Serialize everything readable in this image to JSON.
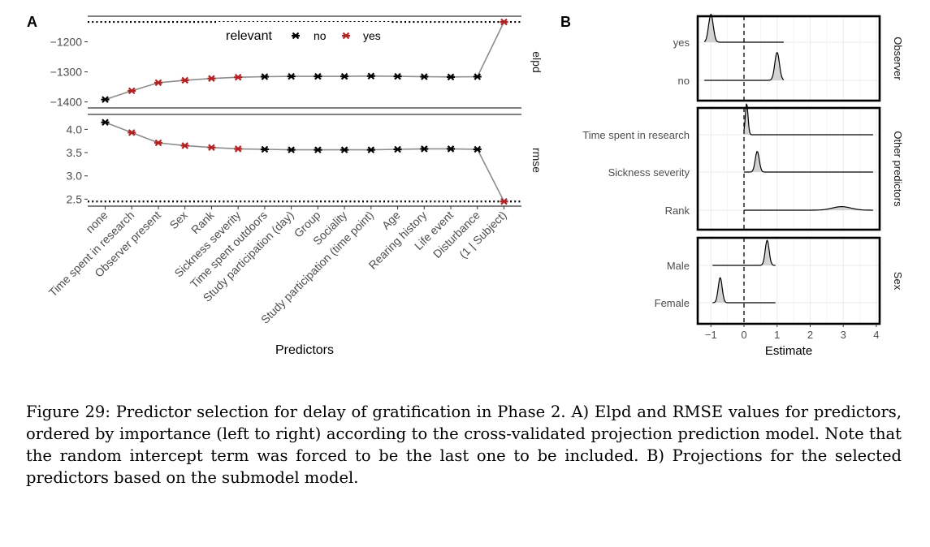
{
  "panels": {
    "a_label": "A",
    "b_label": "B"
  },
  "caption": "Figure 29: Predictor selection for delay of gratification in Phase 2. A) Elpd and RMSE values for predictors, ordered by importance (left to right) according to the cross-validated projection prediction model. Note that the random intercept term was forced to be the last one to be included. B) Projections for the selected predictors based on the submodel model.",
  "colors": {
    "relevant_no": "#000000",
    "relevant_yes": "#b22222",
    "line": "#8c8c8c",
    "panel_border": "#000000"
  },
  "chart_data": [
    {
      "type": "line",
      "panel": "A",
      "xlabel": "Predictors",
      "legend": {
        "title": "relevant",
        "entries": [
          "no",
          "yes"
        ],
        "placement": "top-inside"
      },
      "categories": [
        "none",
        "Time spent in research",
        "Observer present",
        "Sex",
        "Rank",
        "Sickness severity",
        "Time spent outdoors",
        "Study participation (day)",
        "Group",
        "Sociality",
        "Study participation (time point)",
        "Age",
        "Rearing history",
        "Life event",
        "Disturbance",
        "(1 | Subject)"
      ],
      "relevant": [
        "no",
        "yes",
        "yes",
        "yes",
        "yes",
        "yes",
        "no",
        "no",
        "no",
        "no",
        "no",
        "no",
        "no",
        "no",
        "no",
        "yes"
      ],
      "facets": [
        {
          "strip": "elpd",
          "values": [
            -1392,
            -1363,
            -1336,
            -1328,
            -1322,
            -1318,
            -1316,
            -1315,
            -1315,
            -1315,
            -1314,
            -1315,
            -1316,
            -1317,
            -1316,
            -1134
          ],
          "reference": -1134,
          "ylim": [
            -1420,
            -1115
          ],
          "yticks": [
            -1400,
            -1300,
            -1200
          ],
          "ytick_labels": [
            "−1400",
            "−1300",
            "−1200"
          ]
        },
        {
          "strip": "rmse",
          "values": [
            4.15,
            3.93,
            3.71,
            3.65,
            3.61,
            3.58,
            3.57,
            3.56,
            3.56,
            3.56,
            3.56,
            3.57,
            3.58,
            3.58,
            3.57,
            2.45
          ],
          "reference": 2.45,
          "ylim": [
            2.35,
            4.32
          ],
          "yticks": [
            2.5,
            3.0,
            3.5,
            4.0
          ],
          "ytick_labels": [
            "2.5",
            "3.0",
            "3.5",
            "4.0"
          ]
        }
      ]
    },
    {
      "type": "area",
      "panel": "B",
      "xlabel": "Estimate",
      "xlim": [
        -1.4,
        4.1
      ],
      "xticks": [
        -1,
        0,
        1,
        2,
        3,
        4
      ],
      "xtick_labels": [
        "−1",
        "0",
        "1",
        "2",
        "3",
        "4"
      ],
      "reference_x": 0,
      "facets": [
        {
          "strip": "Observer",
          "rows": [
            {
              "label": "yes",
              "peak": -1.0,
              "sd": 0.07,
              "lo": -1.2,
              "hi": 1.2,
              "height": 0.78
            },
            {
              "label": "no",
              "peak": 1.0,
              "sd": 0.07,
              "lo": -1.2,
              "hi": 1.2,
              "height": 0.78
            }
          ]
        },
        {
          "strip": "Other predictors",
          "rows": [
            {
              "label": "Time spent in research",
              "peak": 0.08,
              "sd": 0.04,
              "lo": 0.0,
              "hi": 3.9,
              "height": 0.88
            },
            {
              "label": "Sickness severity",
              "peak": 0.4,
              "sd": 0.06,
              "lo": 0.0,
              "hi": 3.9,
              "height": 0.58
            },
            {
              "label": "Rank",
              "peak": 2.95,
              "sd": 0.28,
              "lo": 0.0,
              "hi": 3.9,
              "height": 0.1
            }
          ]
        },
        {
          "strip": "Sex",
          "rows": [
            {
              "label": "Male",
              "peak": 0.7,
              "sd": 0.06,
              "lo": -0.95,
              "hi": 0.95,
              "height": 0.7
            },
            {
              "label": "Female",
              "peak": -0.72,
              "sd": 0.06,
              "lo": -0.95,
              "hi": 0.95,
              "height": 0.7
            }
          ]
        }
      ]
    }
  ]
}
